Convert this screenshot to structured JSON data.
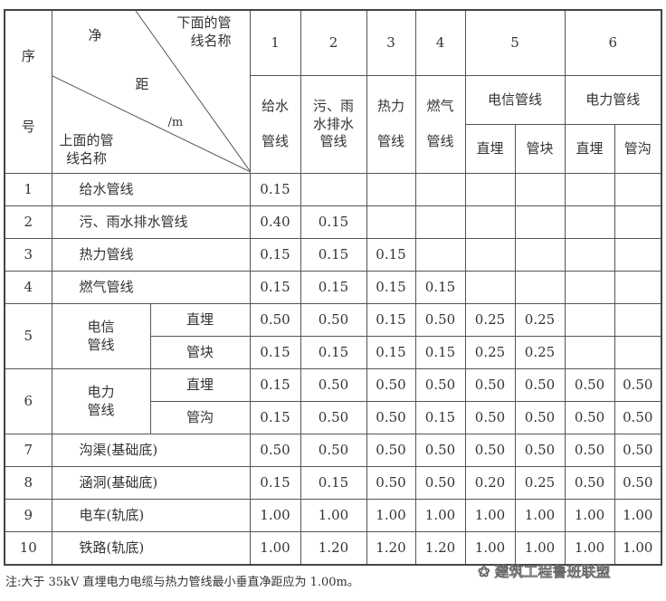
{
  "header": {
    "seq_top": "序",
    "seq_bottom": "号",
    "diag_jing": "净",
    "diag_ju": "距",
    "diag_unit": "/m",
    "lower_label": "下面的管\n线名称",
    "upper_label": "上面的管\n线名称",
    "col_numbers": [
      "1",
      "2",
      "3",
      "4",
      "5",
      "6"
    ],
    "col_names": [
      "给水\n\n管线",
      "污、雨\n水排水\n管线",
      "热力\n\n管线",
      "燃气\n\n管线",
      "电信管线",
      "电力管线"
    ],
    "sub_cols": [
      "直埋",
      "管块",
      "直埋",
      "管沟"
    ]
  },
  "rows": [
    {
      "no": "1",
      "name": "给水管线",
      "values": [
        "0.15",
        "",
        "",
        "",
        "",
        "",
        "",
        ""
      ]
    },
    {
      "no": "2",
      "name": "污、雨水排水管线",
      "values": [
        "0.40",
        "0.15",
        "",
        "",
        "",
        "",
        "",
        ""
      ]
    },
    {
      "no": "3",
      "name": "热力管线",
      "values": [
        "0.15",
        "0.15",
        "0.15",
        "",
        "",
        "",
        "",
        ""
      ]
    },
    {
      "no": "4",
      "name": "燃气管线",
      "values": [
        "0.15",
        "0.15",
        "0.15",
        "0.15",
        "",
        "",
        "",
        ""
      ]
    },
    {
      "no": "5",
      "name": "电信\n管线",
      "sub": "直埋",
      "values": [
        "0.50",
        "0.50",
        "0.15",
        "0.50",
        "0.25",
        "0.25",
        "",
        ""
      ]
    },
    {
      "sub": "管块",
      "values": [
        "0.15",
        "0.15",
        "0.15",
        "0.15",
        "0.25",
        "0.25",
        "",
        ""
      ]
    },
    {
      "no": "6",
      "name": "电力\n管线",
      "sub": "直埋",
      "values": [
        "0.15",
        "0.50",
        "0.50",
        "0.50",
        "0.50",
        "0.50",
        "0.50",
        "0.50"
      ]
    },
    {
      "sub": "管沟",
      "values": [
        "0.15",
        "0.50",
        "0.50",
        "0.15",
        "0.50",
        "0.50",
        "0.50",
        "0.50"
      ]
    },
    {
      "no": "7",
      "name": "沟渠(基础底)",
      "values": [
        "0.50",
        "0.50",
        "0.50",
        "0.50",
        "0.50",
        "0.50",
        "0.50",
        "0.50"
      ]
    },
    {
      "no": "8",
      "name": "涵洞(基础底)",
      "values": [
        "0.15",
        "0.15",
        "0.50",
        "0.50",
        "0.20",
        "0.25",
        "0.50",
        "0.50"
      ]
    },
    {
      "no": "9",
      "name": "电车(轨底)",
      "values": [
        "1.00",
        "1.00",
        "1.00",
        "1.00",
        "1.00",
        "1.00",
        "1.00",
        "1.00"
      ]
    },
    {
      "no": "10",
      "name": "铁路(轨底)",
      "values": [
        "1.00",
        "1.20",
        "1.20",
        "1.20",
        "1.00",
        "1.00",
        "1.00",
        "1.00"
      ]
    }
  ],
  "note": "注:大于 35kV 直埋电力电缆与热力管线最小垂直净距应为 1.00m。",
  "watermark": "建筑工程鲁班联盟"
}
